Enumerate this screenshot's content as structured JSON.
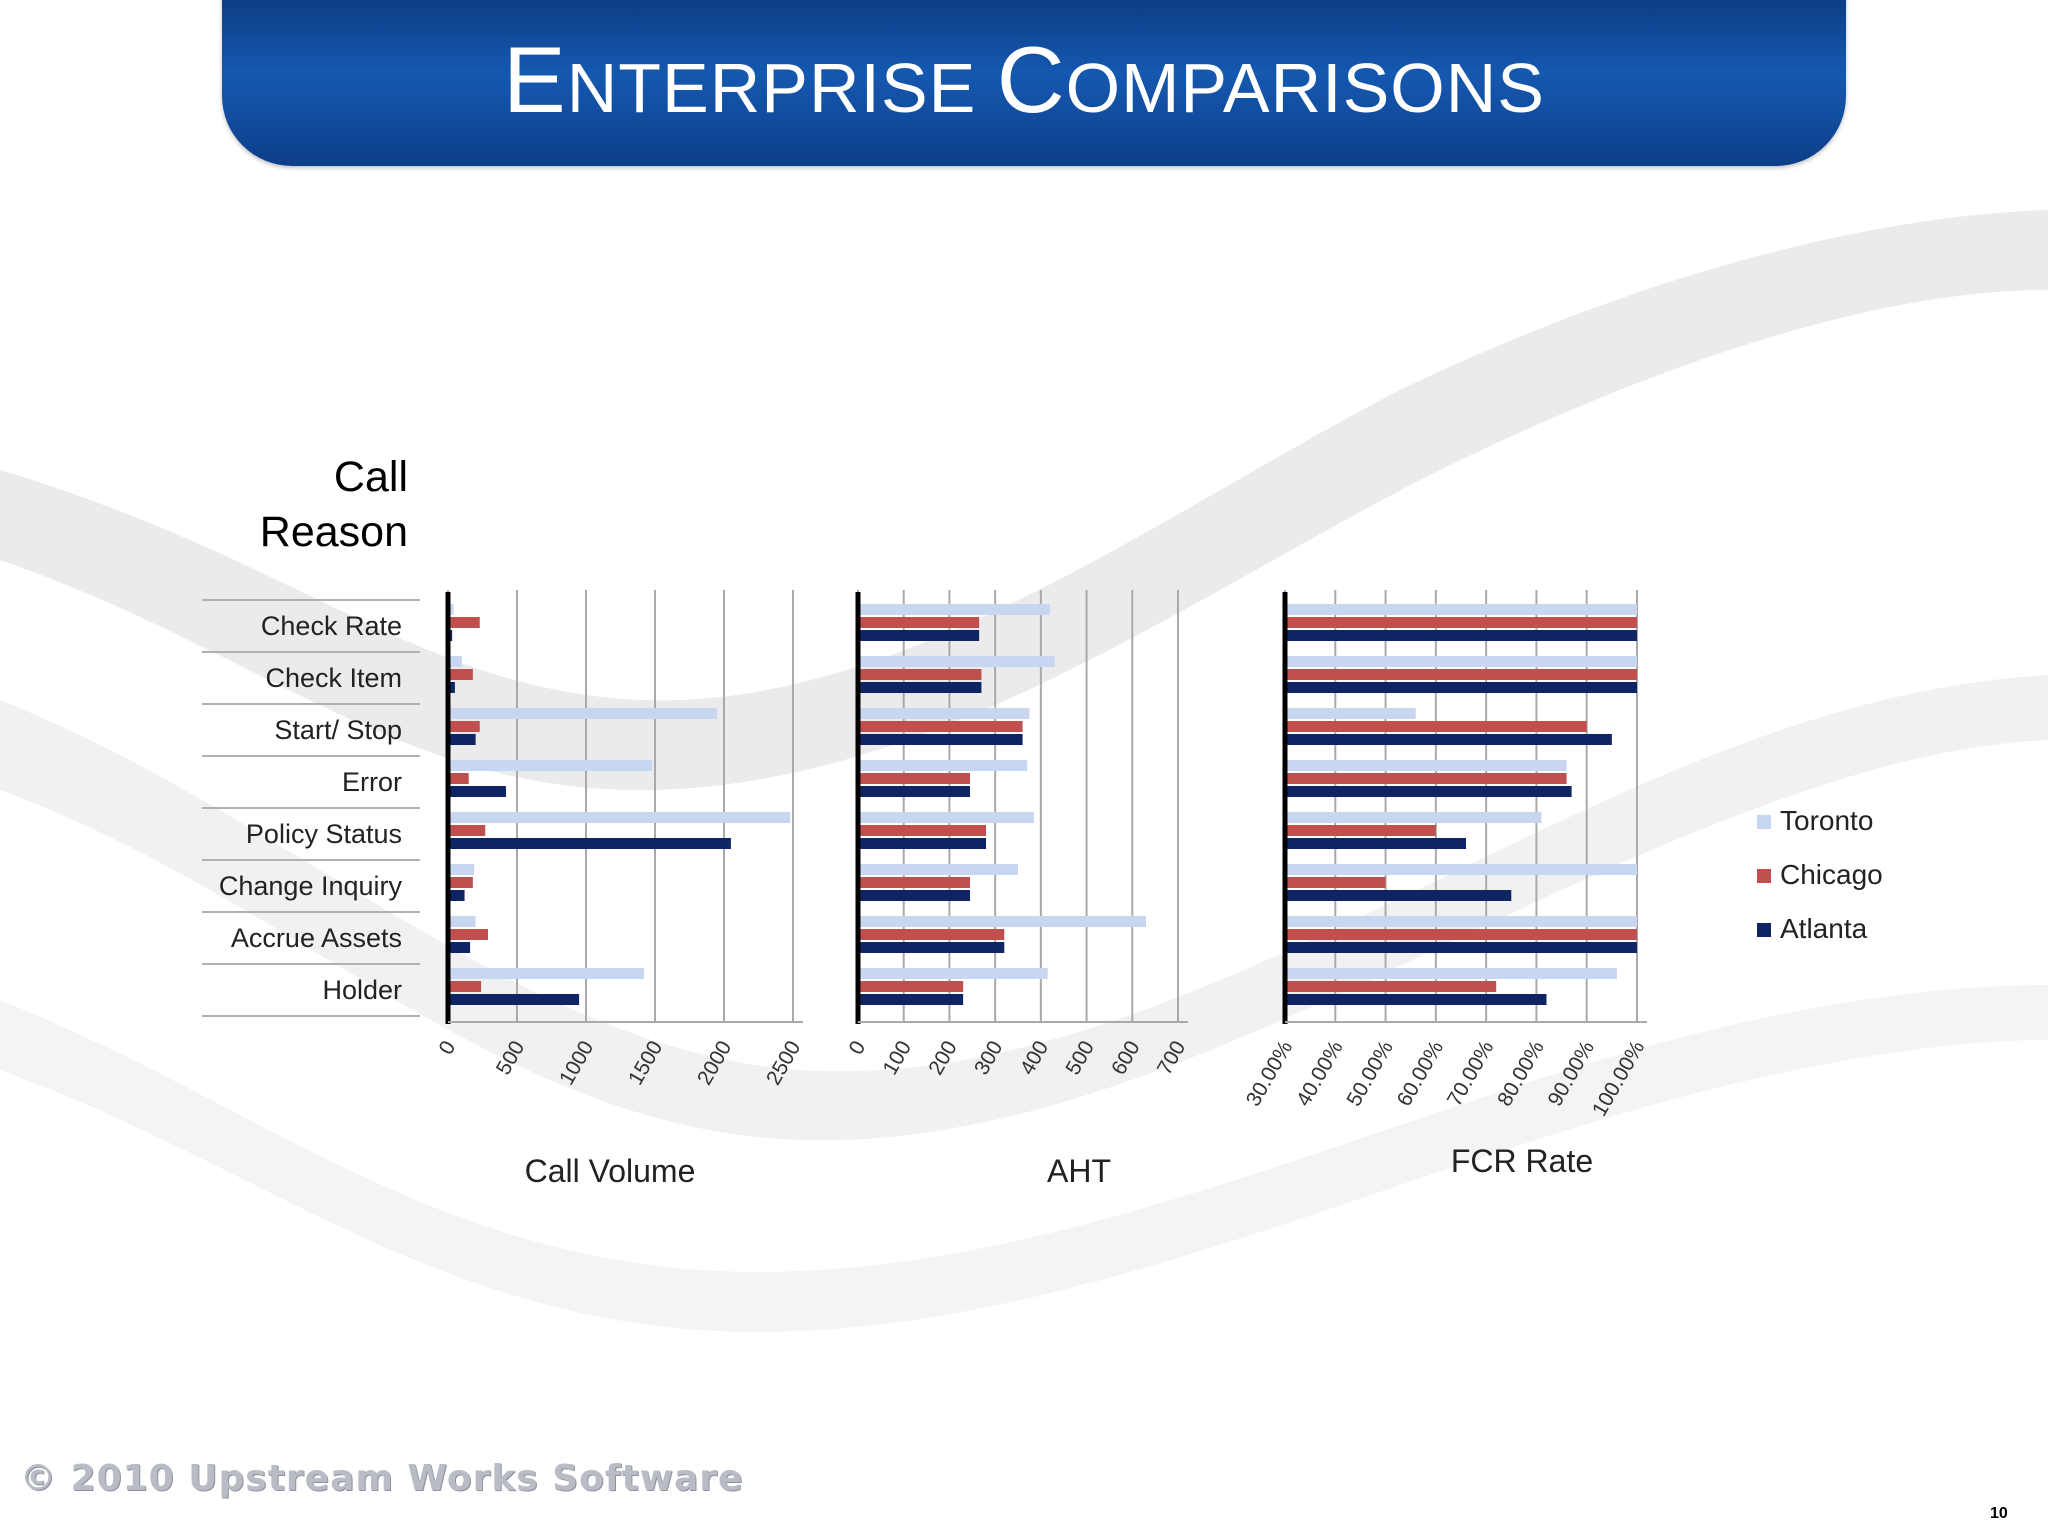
{
  "slide": {
    "title_first": "E",
    "title_rest1": "NTERPRISE ",
    "title_first2": "C",
    "title_rest2": "OMPARISONS",
    "category_header_line1": "Call",
    "category_header_line2": "Reason",
    "footer": "© 2010 Upstream Works Software",
    "page_number": "10"
  },
  "colors": {
    "Toronto": "#c8d6f0",
    "Chicago": "#c0504d",
    "Atlanta": "#0f2462"
  },
  "chart_data": [
    {
      "type": "bar",
      "orientation": "horizontal",
      "xlabel": "Call Volume",
      "categories": [
        "Check Rate",
        "Check Item",
        "Start/ Stop",
        "Error",
        "Policy Status",
        "Change Inquiry",
        "Accrue Assets",
        "Holder"
      ],
      "xlim": [
        0,
        2500
      ],
      "ticks": [
        "0",
        "500",
        "1000",
        "1500",
        "2000",
        "2500"
      ],
      "grid": true,
      "series": [
        {
          "name": "Toronto",
          "values": [
            40,
            100,
            1950,
            1480,
            2480,
            190,
            200,
            1420
          ]
        },
        {
          "name": "Chicago",
          "values": [
            230,
            180,
            230,
            150,
            270,
            180,
            290,
            240
          ]
        },
        {
          "name": "Atlanta",
          "values": [
            30,
            50,
            200,
            420,
            2050,
            120,
            160,
            950
          ]
        }
      ]
    },
    {
      "type": "bar",
      "orientation": "horizontal",
      "xlabel": "AHT",
      "categories": [
        "Check Rate",
        "Check Item",
        "Start/ Stop",
        "Error",
        "Policy Status",
        "Change Inquiry",
        "Accrue Assets",
        "Holder"
      ],
      "xlim": [
        0,
        700
      ],
      "ticks": [
        "0",
        "100",
        "200",
        "300",
        "400",
        "500",
        "600",
        "700"
      ],
      "grid": true,
      "series": [
        {
          "name": "Toronto",
          "values": [
            420,
            430,
            375,
            370,
            385,
            350,
            630,
            415
          ]
        },
        {
          "name": "Chicago",
          "values": [
            265,
            270,
            360,
            245,
            280,
            245,
            320,
            230
          ]
        },
        {
          "name": "Atlanta",
          "values": [
            265,
            270,
            360,
            245,
            280,
            245,
            320,
            230
          ]
        }
      ]
    },
    {
      "type": "bar",
      "orientation": "horizontal",
      "xlabel": "FCR Rate",
      "categories": [
        "Check Rate",
        "Check Item",
        "Start/ Stop",
        "Error",
        "Policy Status",
        "Change Inquiry",
        "Accrue Assets",
        "Holder"
      ],
      "xlim": [
        30,
        100
      ],
      "ticks": [
        "30.00%",
        "40.00%",
        "50.00%",
        "60.00%",
        "70.00%",
        "80.00%",
        "90.00%",
        "100.00%"
      ],
      "grid": true,
      "series": [
        {
          "name": "Toronto",
          "values": [
            100,
            100,
            56,
            86,
            81,
            100,
            100,
            96
          ]
        },
        {
          "name": "Chicago",
          "values": [
            100,
            100,
            90,
            86,
            60,
            50,
            100,
            72
          ]
        },
        {
          "name": "Atlanta",
          "values": [
            100,
            100,
            95,
            87,
            66,
            75,
            100,
            82
          ]
        }
      ],
      "legend": {
        "position": "right",
        "entries": [
          "Toronto",
          "Chicago",
          "Atlanta"
        ]
      }
    }
  ]
}
